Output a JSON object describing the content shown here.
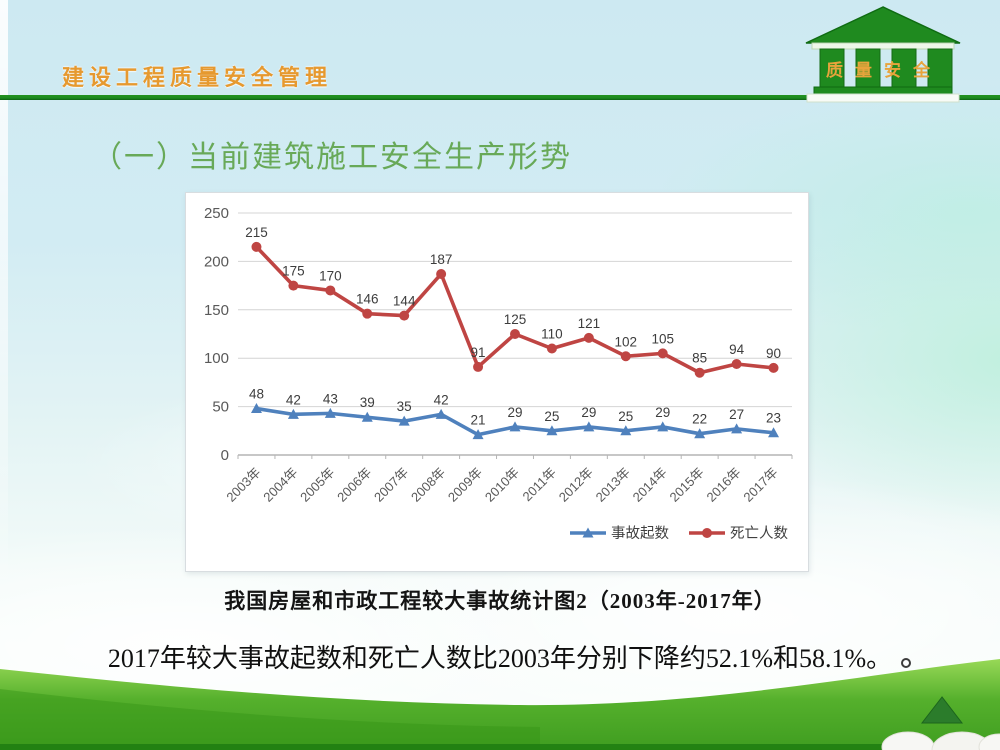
{
  "header": {
    "title": "建设工程质量安全管理",
    "logo_text": "质量安全"
  },
  "slide": {
    "title": "（一）当前建筑施工安全生产形势",
    "caption": "我国房屋和市政工程较大事故统计图2（2003年-2017年）",
    "summary": "2017年较大事故起数和死亡人数比2003年分别下降约52.1%和58.1%。"
  },
  "chart_data": {
    "type": "line",
    "categories": [
      "2003年",
      "2004年",
      "2005年",
      "2006年",
      "2007年",
      "2008年",
      "2009年",
      "2010年",
      "2011年",
      "2012年",
      "2013年",
      "2014年",
      "2015年",
      "2016年",
      "2017年"
    ],
    "series": [
      {
        "name": "事故起数",
        "marker": "triangle",
        "color": "#4f81bd",
        "values": [
          48,
          42,
          43,
          39,
          35,
          42,
          21,
          29,
          25,
          29,
          25,
          29,
          22,
          27,
          23
        ]
      },
      {
        "name": "死亡人数",
        "marker": "circle",
        "color": "#bf4543",
        "values": [
          215,
          175,
          170,
          146,
          144,
          187,
          91,
          125,
          110,
          121,
          102,
          105,
          85,
          94,
          90
        ]
      }
    ],
    "ylim": [
      0,
      250
    ],
    "yticks": [
      0,
      50,
      100,
      150,
      200,
      250
    ],
    "grid": true,
    "data_labels": true,
    "legend_position": "bottom-right"
  },
  "colors": {
    "header_orange": "#e6992f",
    "header_line_green": "#1c8a1f",
    "title_green": "#68a958",
    "series_blue": "#4f81bd",
    "series_red": "#bf4543",
    "grass_green": "#3f9d20",
    "triangle_green": "#2b7c2b",
    "grid_gray": "#d4d4d4",
    "label_gray": "#3d3d3d"
  }
}
